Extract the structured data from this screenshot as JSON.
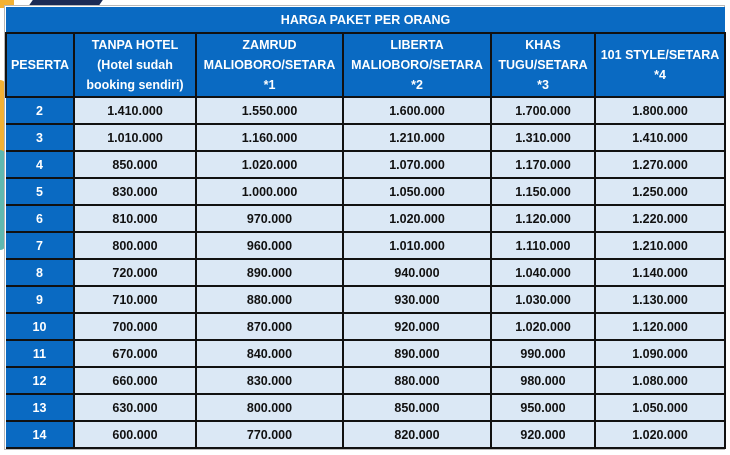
{
  "table": {
    "title": "HARGA PAKET PER ORANG",
    "columns": [
      {
        "key": "peserta",
        "lines": [
          "PESERTA"
        ]
      },
      {
        "key": "tanpa_hotel",
        "lines": [
          "TANPA HOTEL",
          "(Hotel sudah",
          "booking sendiri)"
        ]
      },
      {
        "key": "zamrud",
        "lines": [
          "ZAMRUD",
          "MALIOBORO/SETARA",
          "*1"
        ]
      },
      {
        "key": "liberta",
        "lines": [
          "LIBERTA",
          "MALIOBORO/SETARA",
          "*2"
        ]
      },
      {
        "key": "khas",
        "lines": [
          "KHAS",
          "TUGU/SETARA",
          "*3"
        ]
      },
      {
        "key": "style101",
        "lines": [
          "101 STYLE/SETARA",
          "*4"
        ]
      }
    ],
    "rows": [
      [
        "2",
        "1.410.000",
        "1.550.000",
        "1.600.000",
        "1.700.000",
        "1.800.000"
      ],
      [
        "3",
        "1.010.000",
        "1.160.000",
        "1.210.000",
        "1.310.000",
        "1.410.000"
      ],
      [
        "4",
        "850.000",
        "1.020.000",
        "1.070.000",
        "1.170.000",
        "1.270.000"
      ],
      [
        "5",
        "830.000",
        "1.000.000",
        "1.050.000",
        "1.150.000",
        "1.250.000"
      ],
      [
        "6",
        "810.000",
        "970.000",
        "1.020.000",
        "1.120.000",
        "1.220.000"
      ],
      [
        "7",
        "800.000",
        "960.000",
        "1.010.000",
        "1.110.000",
        "1.210.000"
      ],
      [
        "8",
        "720.000",
        "890.000",
        "940.000",
        "1.040.000",
        "1.140.000"
      ],
      [
        "9",
        "710.000",
        "880.000",
        "930.000",
        "1.030.000",
        "1.130.000"
      ],
      [
        "10",
        "700.000",
        "870.000",
        "920.000",
        "1.020.000",
        "1.120.000"
      ],
      [
        "11",
        "670.000",
        "840.000",
        "890.000",
        "990.000",
        "1.090.000"
      ],
      [
        "12",
        "660.000",
        "830.000",
        "880.000",
        "980.000",
        "1.080.000"
      ],
      [
        "13",
        "630.000",
        "800.000",
        "850.000",
        "950.000",
        "1.050.000"
      ],
      [
        "14",
        "600.000",
        "770.000",
        "820.000",
        "920.000",
        "1.020.000"
      ]
    ]
  },
  "colors": {
    "header_blue": "#0a6ac2",
    "cell_light_blue": "#dbe8f5",
    "border": "#111111",
    "header_text": "#ffffff",
    "cell_text": "#111111"
  }
}
